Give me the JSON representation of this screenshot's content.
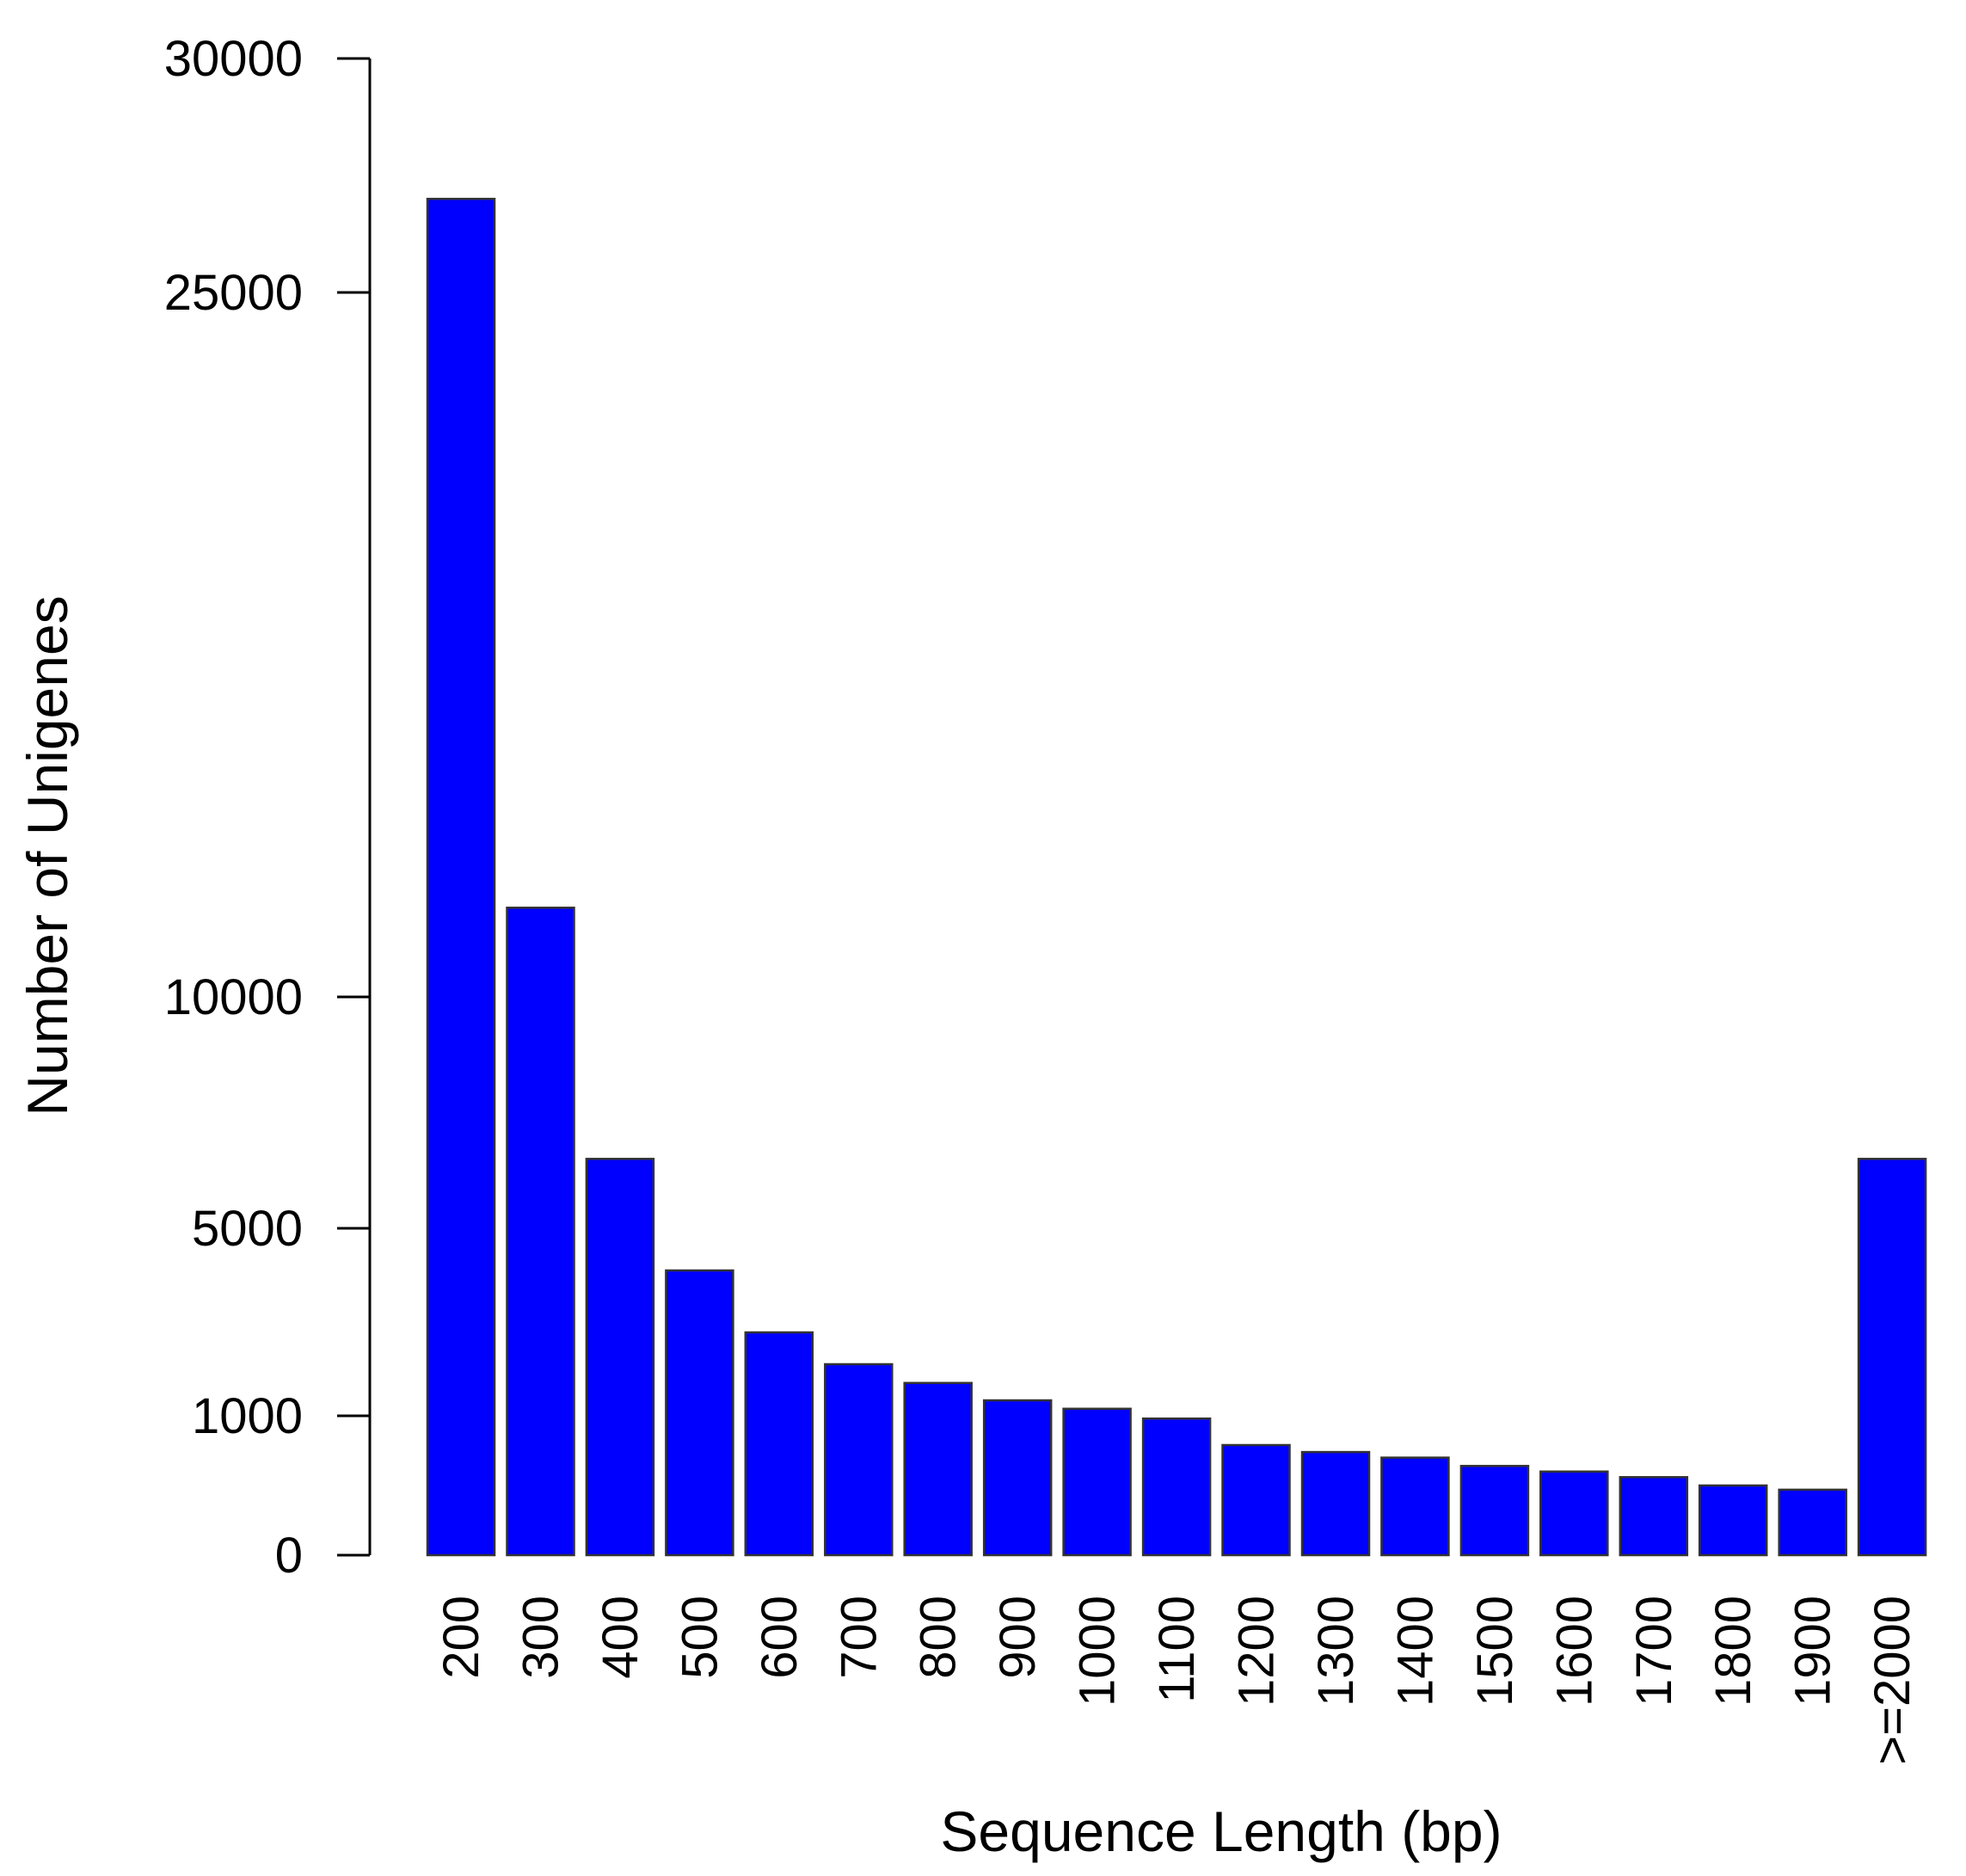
{
  "chart_data": {
    "type": "bar",
    "xlabel": "Sequence Length (bp)",
    "ylabel": "Number of Unigenes",
    "categories": [
      "200",
      "300",
      "400",
      "500",
      "600",
      "700",
      "800",
      "900",
      "1000",
      "1100",
      "1200",
      "1300",
      "1400",
      "1500",
      "1600",
      "1700",
      "1800",
      "1900",
      ">=2000"
    ],
    "values": [
      27000,
      11900,
      6500,
      4100,
      2780,
      2100,
      1700,
      1330,
      1150,
      980,
      790,
      740,
      700,
      640,
      600,
      560,
      500,
      470,
      6500
    ],
    "yticks": [
      {
        "value": 0,
        "label": "0"
      },
      {
        "value": 1000,
        "label": "1000"
      },
      {
        "value": 5000,
        "label": "5000"
      },
      {
        "value": 10000,
        "label": "10000"
      },
      {
        "value": 25000,
        "label": "25000"
      },
      {
        "value": 30000,
        "label": "30000"
      }
    ],
    "bar_color": "#0000FF",
    "bar_border_color": "#333333",
    "grid": false,
    "legend": "none"
  }
}
